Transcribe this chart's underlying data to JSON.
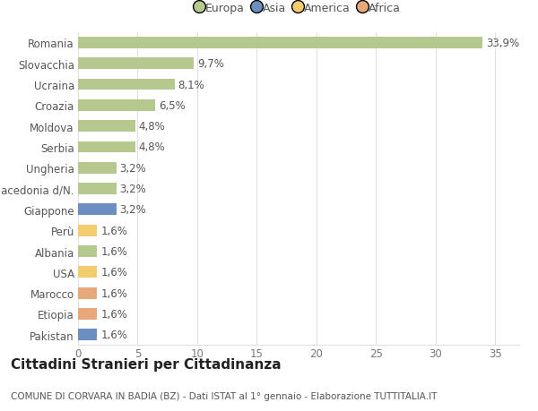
{
  "countries": [
    "Romania",
    "Slovacchia",
    "Ucraina",
    "Croazia",
    "Moldova",
    "Serbia",
    "Ungheria",
    "Macedonia d/N.",
    "Giappone",
    "Perù",
    "Albania",
    "USA",
    "Marocco",
    "Etiopia",
    "Pakistan"
  ],
  "values": [
    33.9,
    9.7,
    8.1,
    6.5,
    4.8,
    4.8,
    3.2,
    3.2,
    3.2,
    1.6,
    1.6,
    1.6,
    1.6,
    1.6,
    1.6
  ],
  "labels": [
    "33,9%",
    "9,7%",
    "8,1%",
    "6,5%",
    "4,8%",
    "4,8%",
    "3,2%",
    "3,2%",
    "3,2%",
    "1,6%",
    "1,6%",
    "1,6%",
    "1,6%",
    "1,6%",
    "1,6%"
  ],
  "continents": [
    "Europa",
    "Europa",
    "Europa",
    "Europa",
    "Europa",
    "Europa",
    "Europa",
    "Europa",
    "Asia",
    "America",
    "Europa",
    "America",
    "Africa",
    "Africa",
    "Asia"
  ],
  "colors": {
    "Europa": "#b5c98e",
    "Asia": "#6a8fc0",
    "America": "#f2cc6e",
    "Africa": "#e8a97a"
  },
  "legend_colors": {
    "Europa": "#b5c98e",
    "Asia": "#6a8fc0",
    "America": "#f2cc6e",
    "Africa": "#e8a97a"
  },
  "title": "Cittadini Stranieri per Cittadinanza",
  "subtitle": "COMUNE DI CORVARA IN BADIA (BZ) - Dati ISTAT al 1° gennaio - Elaborazione TUTTITALIA.IT",
  "xlim": [
    0,
    37
  ],
  "xticks": [
    0,
    5,
    10,
    15,
    20,
    25,
    30,
    35
  ],
  "background_color": "#ffffff",
  "grid_color": "#e0e0e0",
  "bar_height": 0.55,
  "label_fontsize": 8.5,
  "tick_fontsize": 8.5,
  "title_fontsize": 11,
  "subtitle_fontsize": 7.5
}
